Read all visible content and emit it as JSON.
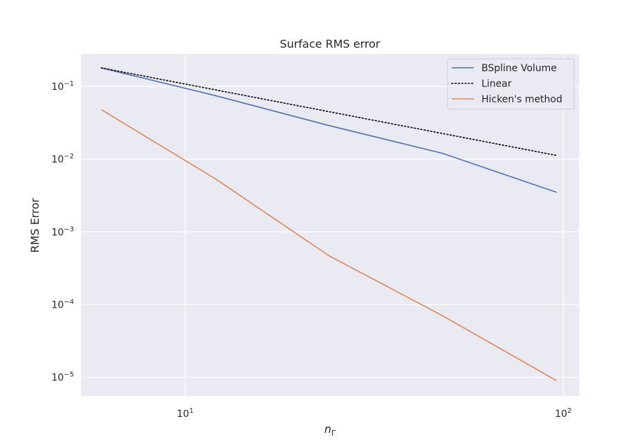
{
  "chart_data": {
    "type": "line",
    "title": "Surface RMS error",
    "xlabel_main": "n",
    "xlabel_sub": "Γ",
    "ylabel": "RMS Error",
    "x_scale": "log",
    "y_scale": "log",
    "xlim": [
      5.3,
      110
    ],
    "ylim": [
      5.5e-06,
      0.28
    ],
    "grid": true,
    "legend_position": "top-right",
    "x_ticks": [
      {
        "value": 10,
        "base": "10",
        "exp": "1"
      },
      {
        "value": 100,
        "base": "10",
        "exp": "2"
      }
    ],
    "y_ticks": [
      {
        "value": 0.1,
        "base": "10",
        "exp": "−1"
      },
      {
        "value": 0.01,
        "base": "10",
        "exp": "−2"
      },
      {
        "value": 0.001,
        "base": "10",
        "exp": "−3"
      },
      {
        "value": 0.0001,
        "base": "10",
        "exp": "−4"
      },
      {
        "value": 1e-05,
        "base": "10",
        "exp": "−5"
      }
    ],
    "series": [
      {
        "name": "BSpline Volume",
        "color": "#4c72b0",
        "style": "solid",
        "x": [
          6,
          12,
          24,
          48,
          96
        ],
        "y": [
          0.18,
          0.075,
          0.029,
          0.012,
          0.0035
        ]
      },
      {
        "name": "Linear",
        "color": "#000000",
        "style": "dotted",
        "x": [
          6,
          12,
          24,
          48,
          96
        ],
        "y": [
          0.18,
          0.09,
          0.045,
          0.0225,
          0.01125
        ]
      },
      {
        "name": "Hicken's method",
        "color": "#dd8452",
        "style": "solid",
        "x": [
          6,
          12,
          24,
          48,
          96
        ],
        "y": [
          0.048,
          0.0054,
          0.00047,
          7e-05,
          9e-06
        ]
      }
    ]
  },
  "colors": {
    "plot_background": "#eaeaf2",
    "grid": "#ffffff"
  }
}
